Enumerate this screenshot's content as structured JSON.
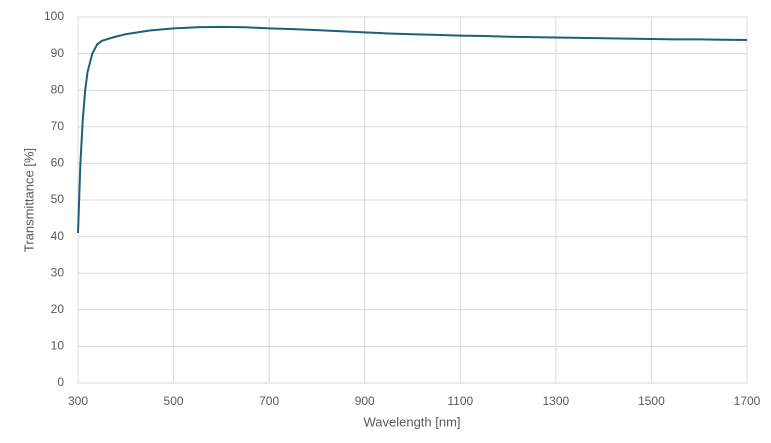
{
  "chart_data": {
    "type": "line",
    "x_label": "Wavelength [nm]",
    "y_label": "Transmittance [%]",
    "x": [
      300,
      305,
      310,
      315,
      320,
      330,
      340,
      350,
      375,
      400,
      450,
      500,
      550,
      600,
      650,
      700,
      750,
      800,
      850,
      900,
      950,
      1000,
      1050,
      1100,
      1150,
      1200,
      1250,
      1300,
      1350,
      1400,
      1450,
      1500,
      1550,
      1600,
      1650,
      1700
    ],
    "series": [
      {
        "name": "Transmittance",
        "color": "#1e5f78",
        "values": [
          41,
          60,
          72,
          80,
          85,
          90,
          92.5,
          93.5,
          94.5,
          95.3,
          96.3,
          96.9,
          97.2,
          97.3,
          97.2,
          96.9,
          96.7,
          96.4,
          96.1,
          95.8,
          95.5,
          95.3,
          95.1,
          94.9,
          94.8,
          94.6,
          94.5,
          94.4,
          94.3,
          94.2,
          94.1,
          94.0,
          93.9,
          93.9,
          93.8,
          93.7
        ]
      }
    ],
    "xlim": [
      300,
      1700
    ],
    "xticks": [
      300,
      500,
      700,
      900,
      1100,
      1300,
      1500,
      1700
    ],
    "ylim": [
      0,
      100
    ],
    "yticks": [
      0,
      10,
      20,
      30,
      40,
      50,
      60,
      70,
      80,
      90,
      100
    ],
    "grid": true
  }
}
